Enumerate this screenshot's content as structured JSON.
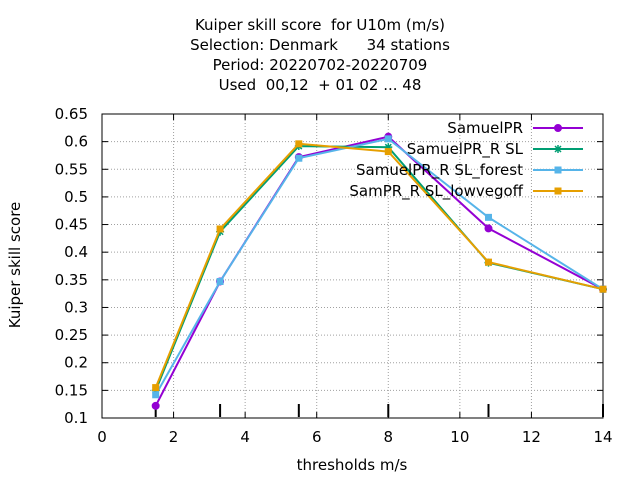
{
  "chart_data": {
    "type": "line",
    "title_lines": [
      "Kuiper skill score  for U10m (m/s)",
      "Selection: Denmark      34 stations",
      "Period: 20220702-20220709",
      "Used  00,12  + 01 02 ... 48"
    ],
    "xlabel": "thresholds m/s",
    "ylabel": "Kuiper skill score",
    "xlim": [
      0,
      14
    ],
    "ylim": [
      0.1,
      0.65
    ],
    "x_ticks": [
      "0",
      "2",
      "4",
      "6",
      "8",
      "10",
      "12",
      "14"
    ],
    "y_ticks": [
      "0.1",
      "0.15",
      "0.2",
      "0.25",
      "0.3",
      "0.35",
      "0.4",
      "0.45",
      "0.5",
      "0.55",
      "0.6",
      "0.65"
    ],
    "grid": true,
    "legend_position": "top-right",
    "threshold_marks": [
      1.5,
      3.3,
      5.5,
      8.0,
      10.8,
      14.0
    ],
    "x": [
      1.5,
      3.3,
      5.5,
      8.0,
      10.8,
      14.0
    ],
    "series": [
      {
        "name": "SamuelPR",
        "color": "#9400d3",
        "marker": "circle",
        "values": [
          0.122,
          0.347,
          0.572,
          0.609,
          0.443,
          0.333
        ]
      },
      {
        "name": "SamuelPR_R SL",
        "color": "#009e73",
        "marker": "star",
        "values": [
          0.15,
          0.437,
          0.592,
          0.59,
          0.381,
          0.333
        ]
      },
      {
        "name": "SamuelPR_R SL_forest",
        "color": "#56b4e9",
        "marker": "square",
        "values": [
          0.142,
          0.347,
          0.57,
          0.605,
          0.463,
          0.333
        ]
      },
      {
        "name": "SamPR_R SL_lowvegoff",
        "color": "#e69f00",
        "marker": "square",
        "values": [
          0.155,
          0.442,
          0.596,
          0.582,
          0.382,
          0.333
        ]
      }
    ]
  }
}
